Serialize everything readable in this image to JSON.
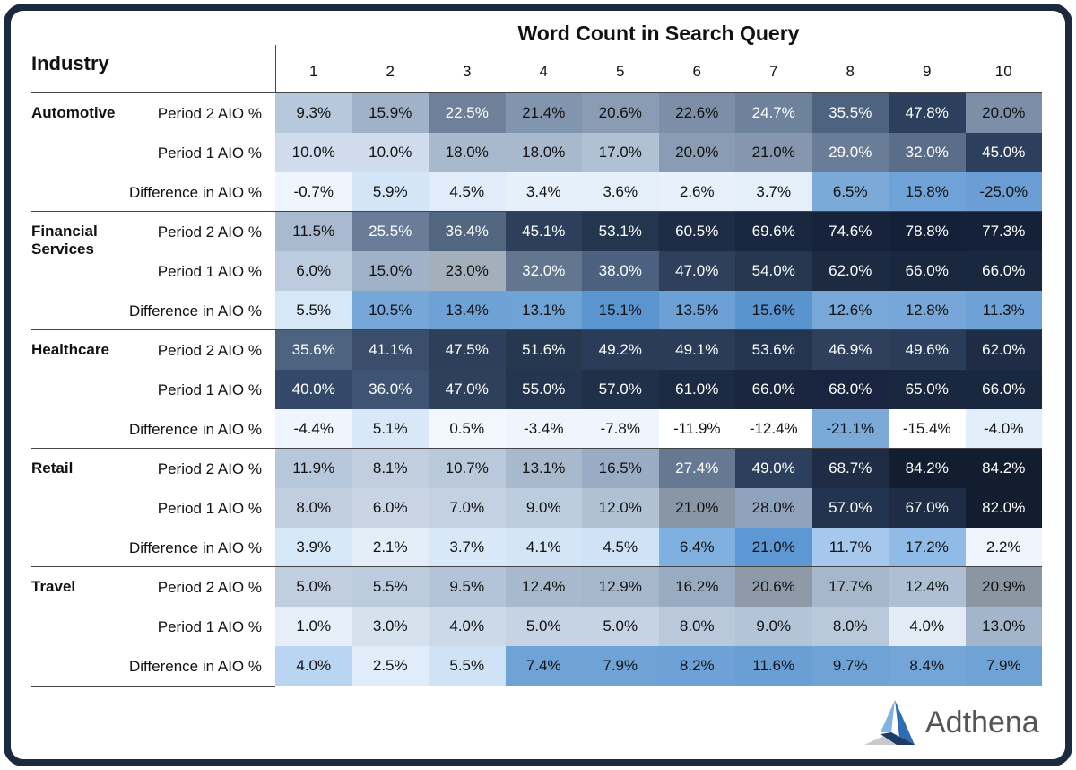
{
  "header": {
    "axis_title": "Word Count in Search Query",
    "industry_label": "Industry",
    "columns": [
      "1",
      "2",
      "3",
      "4",
      "5",
      "6",
      "7",
      "8",
      "9",
      "10"
    ]
  },
  "groups": [
    {
      "industry": "Automotive",
      "rows": [
        {
          "label": "Period 2 AIO %",
          "cells": [
            "9.3%",
            "15.9%",
            "22.5%",
            "21.4%",
            "20.6%",
            "22.6%",
            "24.7%",
            "35.5%",
            "47.8%",
            "20.0%"
          ],
          "colors": [
            "#b8c8dc",
            "#a0b2c8",
            "#6e809a",
            "#8295ae",
            "#8a9cb4",
            "#7d8fa8",
            "#6f829c",
            "#4e6380",
            "#2c3f5c",
            "#7c8ea8"
          ]
        },
        {
          "label": "Period 1 AIO %",
          "cells": [
            "10.0%",
            "10.0%",
            "18.0%",
            "18.0%",
            "17.0%",
            "20.0%",
            "21.0%",
            "29.0%",
            "32.0%",
            "45.0%"
          ],
          "colors": [
            "#d0dced",
            "#d0dced",
            "#a8b9cd",
            "#a8b9cd",
            "#b0c1d4",
            "#8a9cb4",
            "#8596ae",
            "#6a7d98",
            "#5a6e8a",
            "#2c3f5c"
          ]
        },
        {
          "label": "Difference in AIO %",
          "cells": [
            "-0.7%",
            "5.9%",
            "4.5%",
            "3.4%",
            "3.6%",
            "2.6%",
            "3.7%",
            "6.5%",
            "15.8%",
            "-25.0%"
          ],
          "colors": [
            "#eef5fc",
            "#d3e5f7",
            "#e0ecf9",
            "#e6f0fa",
            "#e4effa",
            "#e8f1fb",
            "#e4effa",
            "#7ba9d8",
            "#6fa2d6",
            "#6a9ed4"
          ]
        }
      ]
    },
    {
      "industry": "Financial Services",
      "rows": [
        {
          "label": "Period 2 AIO %",
          "cells": [
            "11.5%",
            "25.5%",
            "36.4%",
            "45.1%",
            "53.1%",
            "60.5%",
            "69.6%",
            "74.6%",
            "78.8%",
            "77.3%"
          ],
          "colors": [
            "#a9bad0",
            "#6a7d98",
            "#52677f",
            "#2d3f5b",
            "#243550",
            "#1e2d45",
            "#1a283f",
            "#16233a",
            "#142037",
            "#152138"
          ]
        },
        {
          "label": "Period 1 AIO %",
          "cells": [
            "6.0%",
            "15.0%",
            "23.0%",
            "32.0%",
            "38.0%",
            "47.0%",
            "54.0%",
            "62.0%",
            "66.0%",
            "66.0%"
          ],
          "colors": [
            "#bccbdd",
            "#a0b2c8",
            "#a3afbb",
            "#62768f",
            "#4c6180",
            "#2e405c",
            "#26374f",
            "#1c2a42",
            "#1a283f",
            "#1a283f"
          ]
        },
        {
          "label": "Difference in AIO %",
          "cells": [
            "5.5%",
            "10.5%",
            "13.4%",
            "13.1%",
            "15.1%",
            "13.5%",
            "15.6%",
            "12.6%",
            "12.8%",
            "11.3%"
          ],
          "colors": [
            "#d6e7f8",
            "#76a7d8",
            "#6ea2d6",
            "#6fa3d6",
            "#5b95cf",
            "#6da1d5",
            "#5a94cf",
            "#78a8d8",
            "#76a7d8",
            "#6ea2d6"
          ]
        }
      ]
    },
    {
      "industry": "Healthcare",
      "rows": [
        {
          "label": "Period 2 AIO %",
          "cells": [
            "35.6%",
            "41.1%",
            "47.5%",
            "51.6%",
            "49.2%",
            "49.1%",
            "53.6%",
            "46.9%",
            "49.6%",
            "62.0%"
          ],
          "colors": [
            "#4e6380",
            "#3a4e6c",
            "#2d3f5b",
            "#263750",
            "#2a3c57",
            "#2a3c57",
            "#243550",
            "#2e405c",
            "#2a3c57",
            "#1e2d45"
          ]
        },
        {
          "label": "Period 1 AIO %",
          "cells": [
            "40.0%",
            "36.0%",
            "47.0%",
            "55.0%",
            "57.0%",
            "61.0%",
            "66.0%",
            "68.0%",
            "65.0%",
            "66.0%"
          ],
          "colors": [
            "#34486a",
            "#3f5372",
            "#2e405c",
            "#243550",
            "#203048",
            "#1c2a42",
            "#19263e",
            "#182440",
            "#1a283f",
            "#1a283f"
          ]
        },
        {
          "label": "Difference in AIO %",
          "cells": [
            "-4.4%",
            "5.1%",
            "0.5%",
            "-3.4%",
            "-7.8%",
            "-11.9%",
            "-12.4%",
            "-21.1%",
            "-15.4%",
            "-4.0%"
          ],
          "colors": [
            "#eef5fc",
            "#d8e8f8",
            "#f2f7fd",
            "#eef5fc",
            "#eef5fc",
            "#ffffff",
            "#ffffff",
            "#7ba9d8",
            "#ffffff",
            "#e2eefa"
          ]
        }
      ]
    },
    {
      "industry": "Retail",
      "rows": [
        {
          "label": "Period 2 AIO %",
          "cells": [
            "11.9%",
            "8.1%",
            "10.7%",
            "13.1%",
            "16.5%",
            "27.4%",
            "49.0%",
            "68.7%",
            "84.2%",
            "84.2%"
          ],
          "colors": [
            "#b8c8dc",
            "#c0cee0",
            "#b9c8da",
            "#a8b9cd",
            "#9aacc3",
            "#667892",
            "#2c3f5c",
            "#1e2d45",
            "#121d30",
            "#121d30"
          ]
        },
        {
          "label": "Period 1 AIO %",
          "cells": [
            "8.0%",
            "6.0%",
            "7.0%",
            "9.0%",
            "12.0%",
            "21.0%",
            "28.0%",
            "57.0%",
            "67.0%",
            "82.0%"
          ],
          "colors": [
            "#c0cee0",
            "#c9d5e4",
            "#c4d1e2",
            "#bccbdd",
            "#b0c1d4",
            "#8896a6",
            "#8fa3bf",
            "#233450",
            "#1e2d45",
            "#121d30"
          ]
        },
        {
          "label": "Difference in AIO %",
          "cells": [
            "3.9%",
            "2.1%",
            "3.7%",
            "4.1%",
            "4.5%",
            "6.4%",
            "21.0%",
            "11.7%",
            "17.2%",
            "2.2%"
          ],
          "colors": [
            "#d6e7f8",
            "#e3eef9",
            "#d9e8f8",
            "#d3e5f7",
            "#cfe2f6",
            "#7fb0e0",
            "#5d98d4",
            "#a6c8ec",
            "#8fbbe6",
            "#eef5fc"
          ]
        }
      ]
    },
    {
      "industry": "Travel",
      "rows": [
        {
          "label": "Period 2 AIO %",
          "cells": [
            "5.0%",
            "5.5%",
            "9.5%",
            "12.4%",
            "12.9%",
            "16.2%",
            "20.6%",
            "17.7%",
            "12.4%",
            "20.9%"
          ],
          "colors": [
            "#c0cee0",
            "#bccbdd",
            "#b4c4d8",
            "#a8b9cd",
            "#a6b7cc",
            "#99abc1",
            "#8f9aa8",
            "#a6b7cc",
            "#aebfd3",
            "#8b96a3"
          ]
        },
        {
          "label": "Period 1 AIO %",
          "cells": [
            "1.0%",
            "3.0%",
            "4.0%",
            "5.0%",
            "5.0%",
            "8.0%",
            "9.0%",
            "8.0%",
            "4.0%",
            "13.0%"
          ],
          "colors": [
            "#e6eef8",
            "#d6e1ee",
            "#ccd9e8",
            "#c6d3e4",
            "#c6d3e4",
            "#b9c8da",
            "#b4c4d8",
            "#b9c8da",
            "#e3ebf5",
            "#a3b5ca"
          ]
        },
        {
          "label": "Difference in AIO %",
          "cells": [
            "4.0%",
            "2.5%",
            "5.5%",
            "7.4%",
            "7.9%",
            "8.2%",
            "11.6%",
            "9.7%",
            "8.4%",
            "7.9%"
          ],
          "colors": [
            "#b9d5f2",
            "#e0ecf9",
            "#cfe2f6",
            "#6fa3d6",
            "#6fa3d6",
            "#6ea2d6",
            "#6a9fd4",
            "#6fa3d6",
            "#73a6d7",
            "#6fa3d6"
          ]
        }
      ]
    }
  ],
  "logo": {
    "text": "Adthena"
  }
}
